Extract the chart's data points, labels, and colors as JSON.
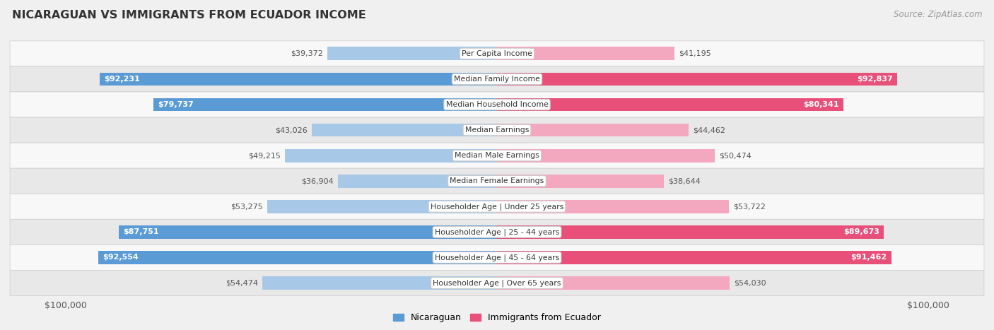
{
  "title": "NICARAGUAN VS IMMIGRANTS FROM ECUADOR INCOME",
  "source": "Source: ZipAtlas.com",
  "categories": [
    "Per Capita Income",
    "Median Family Income",
    "Median Household Income",
    "Median Earnings",
    "Median Male Earnings",
    "Median Female Earnings",
    "Householder Age | Under 25 years",
    "Householder Age | 25 - 44 years",
    "Householder Age | 45 - 64 years",
    "Householder Age | Over 65 years"
  ],
  "nicaraguan_values": [
    39372,
    92231,
    79737,
    43026,
    49215,
    36904,
    53275,
    87751,
    92554,
    54474
  ],
  "ecuador_values": [
    41195,
    92837,
    80341,
    44462,
    50474,
    38644,
    53722,
    89673,
    91462,
    54030
  ],
  "nicaraguan_labels": [
    "$39,372",
    "$92,231",
    "$79,737",
    "$43,026",
    "$49,215",
    "$36,904",
    "$53,275",
    "$87,751",
    "$92,554",
    "$54,474"
  ],
  "ecuador_labels": [
    "$41,195",
    "$92,837",
    "$80,341",
    "$44,462",
    "$50,474",
    "$38,644",
    "$53,722",
    "$89,673",
    "$91,462",
    "$54,030"
  ],
  "max_value": 100000,
  "nicaraguan_color_light": "#a8c8e8",
  "nicaraguan_color_dark": "#5b9bd5",
  "ecuador_color_light": "#f4a8c0",
  "ecuador_color_dark": "#e8507a",
  "label_color_dark": "#555555",
  "label_color_white": "#ffffff",
  "bg_color": "#f0f0f0",
  "row_bg_light": "#f8f8f8",
  "row_bg_dark": "#e8e8e8",
  "legend_nicaraguan": "Nicaraguan",
  "legend_ecuador": "Immigrants from Ecuador",
  "bar_height": 0.52,
  "white_label_threshold": 60000
}
